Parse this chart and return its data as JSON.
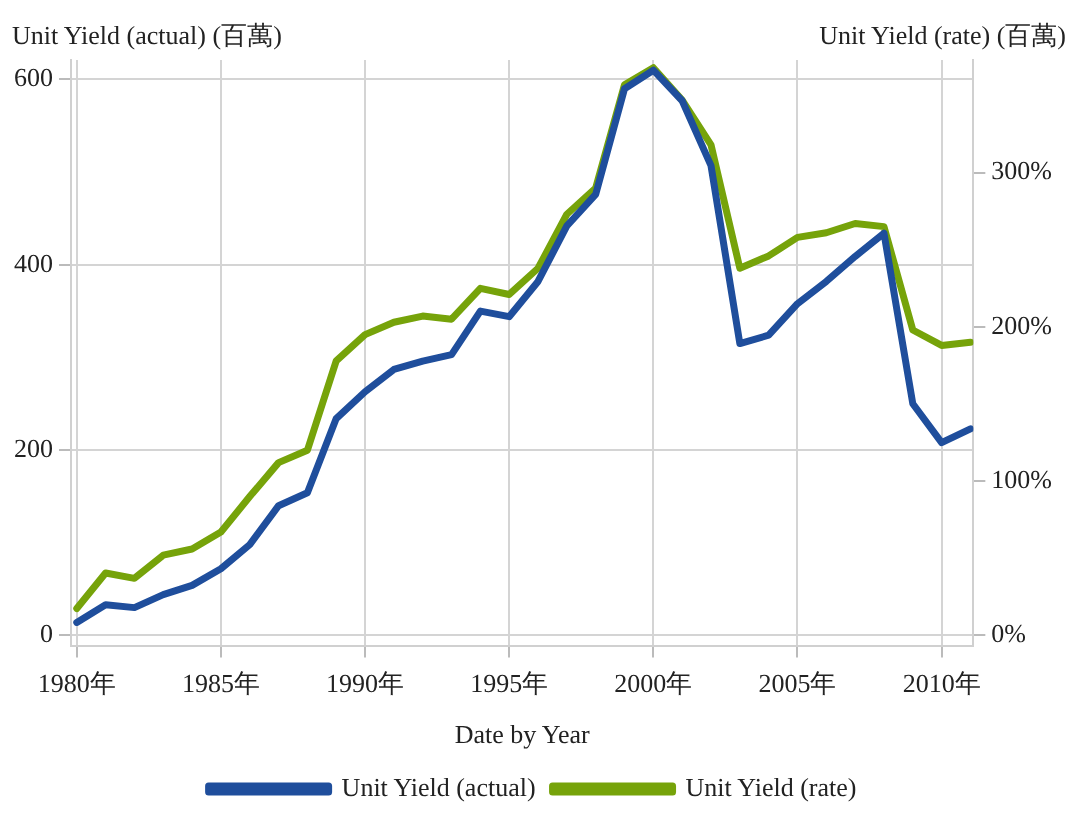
{
  "chart_data": {
    "type": "line",
    "xlabel": "Date by Year",
    "ylabel": "Unit Yield (actual) (百萬)",
    "y2label": "Unit Yield (rate) (百萬)",
    "x": [
      1980,
      1981,
      1982,
      1983,
      1984,
      1985,
      1986,
      1987,
      1988,
      1989,
      1990,
      1991,
      1992,
      1993,
      1994,
      1995,
      1996,
      1997,
      1998,
      1999,
      2000,
      2001,
      2002,
      2003,
      2004,
      2005,
      2006,
      2007,
      2008,
      2009,
      2010,
      2011
    ],
    "series": [
      {
        "name": "Unit Yield (actual)",
        "color": "#1f4e9c",
        "values": [
          14,
          33,
          30,
          44,
          54,
          72,
          98,
          140,
          154,
          234,
          263,
          287,
          296,
          303,
          350,
          344,
          382,
          442,
          476,
          590,
          610,
          577,
          507,
          315,
          324,
          358,
          382,
          409,
          434,
          250,
          208,
          223
        ]
      },
      {
        "name": "Unit Yield (rate)",
        "color": "#76a30a",
        "axis": "y2",
        "values": [
          17.5,
          40.5,
          37,
          52,
          56,
          67,
          90,
          112,
          120,
          178,
          195,
          203,
          207,
          205,
          225,
          221,
          238,
          273,
          290,
          357,
          368,
          347,
          318,
          238,
          246,
          258,
          261,
          267,
          265,
          198,
          188,
          190
        ]
      }
    ],
    "xlim": [
      1979.8,
      2011.1
    ],
    "xticks": [
      {
        "value": 1980,
        "label": "1980年"
      },
      {
        "value": 1985,
        "label": "1985年"
      },
      {
        "value": 1990,
        "label": "1990年"
      },
      {
        "value": 1995,
        "label": "1995年"
      },
      {
        "value": 2000,
        "label": "2000年"
      },
      {
        "value": 2005,
        "label": "2005年"
      },
      {
        "value": 2010,
        "label": "2010年"
      }
    ],
    "ylim": [
      -11,
      621
    ],
    "yticks": [
      0,
      200,
      400,
      600
    ],
    "y2lim": [
      -6.6,
      373
    ],
    "y2ticks": [
      {
        "value": 0,
        "label": "0%"
      },
      {
        "value": 100,
        "label": "100%"
      },
      {
        "value": 200,
        "label": "200%"
      },
      {
        "value": 300,
        "label": "300%"
      }
    ],
    "grid": true,
    "legend": "bottom",
    "marker": "none",
    "line_style": "solid"
  }
}
